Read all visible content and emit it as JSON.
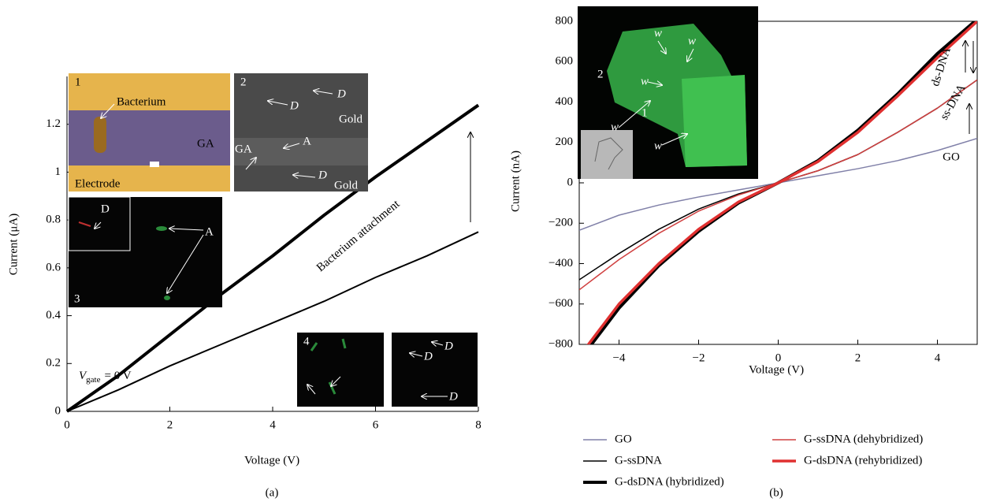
{
  "chart_data": [
    {
      "type": "line",
      "panel_label": "(a)",
      "xlabel": "Voltage (V)",
      "ylabel": "Current (μA)",
      "x": [
        0,
        1,
        2,
        3,
        4,
        5,
        6,
        7,
        8
      ],
      "xlim": [
        0,
        8
      ],
      "xticks": [
        0,
        2,
        4,
        6,
        8
      ],
      "ylim": [
        0,
        1.4
      ],
      "yticks": [
        0,
        0.2,
        0.4,
        0.6,
        0.8,
        1,
        1.2
      ],
      "series": [
        {
          "name": "Bacterium attachment",
          "color": "#000000",
          "linewidth": 4,
          "values": [
            0,
            0.15,
            0.32,
            0.49,
            0.65,
            0.82,
            0.98,
            1.13,
            1.28
          ]
        },
        {
          "name": "GA",
          "color": "#000000",
          "linewidth": 2,
          "values": [
            0,
            0.09,
            0.19,
            0.28,
            0.37,
            0.46,
            0.56,
            0.65,
            0.75
          ]
        }
      ],
      "gate_label": {
        "symbol": "V",
        "subscript": "gate",
        "rest": "= 0 V"
      },
      "insets": [
        {
          "labels": [
            "1",
            "Bacterium",
            "GA",
            "Electrode"
          ]
        },
        {
          "labels": [
            "2",
            "D",
            "D",
            "Gold",
            "GA",
            "A",
            "D",
            "Gold"
          ]
        },
        {
          "labels": [
            "D",
            "A",
            "3"
          ]
        },
        {
          "labels": [
            "4"
          ]
        },
        {
          "labels": [
            "D",
            "D",
            "D"
          ]
        }
      ]
    },
    {
      "type": "line",
      "panel_label": "(b)",
      "xlabel": "Voltage (V)",
      "ylabel": "Current (nA)",
      "x": [
        -5,
        -4,
        -3,
        -2,
        -1,
        0,
        1,
        2,
        3,
        4,
        5
      ],
      "xlim": [
        -5,
        5
      ],
      "xticks": [
        {
          "value": -4,
          "label": "−4"
        },
        {
          "value": -2,
          "label": "−2"
        },
        0,
        2,
        4
      ],
      "ylim": [
        -800,
        800
      ],
      "yticks": [
        {
          "value": -800,
          "label": "−800"
        },
        {
          "value": -600,
          "label": "−600"
        },
        {
          "value": -400,
          "label": "−400"
        },
        {
          "value": -200,
          "label": "−200"
        },
        0,
        200,
        400,
        600,
        800
      ],
      "legend": "bottom",
      "series": [
        {
          "name": "GO",
          "color": "#8080a8",
          "linewidth": 1.5,
          "values": [
            -235,
            -160,
            -110,
            -70,
            -35,
            0,
            35,
            70,
            110,
            160,
            220
          ]
        },
        {
          "name": "G-ssDNA",
          "color": "#000000",
          "linewidth": 1.5,
          "values": [
            -480,
            -350,
            -230,
            -130,
            -55,
            0,
            60,
            140,
            250,
            370,
            510
          ]
        },
        {
          "name": "G-dsDNA (hybridized)",
          "color": "#000000",
          "linewidth": 4,
          "values": [
            -880,
            -620,
            -410,
            -240,
            -100,
            0,
            110,
            260,
            440,
            640,
            810
          ]
        },
        {
          "name": "G-ssDNA (dehybridized)",
          "color": "#d04040",
          "linewidth": 1.5,
          "values": [
            -530,
            -380,
            -250,
            -140,
            -60,
            0,
            60,
            140,
            250,
            370,
            510
          ]
        },
        {
          "name": "G-dsDNA (rehybridized)",
          "color": "#e03030",
          "linewidth": 3.5,
          "values": [
            -860,
            -600,
            -400,
            -230,
            -95,
            0,
            105,
            250,
            430,
            620,
            800
          ]
        }
      ],
      "annotations": [
        "ds-DNA",
        "ss-DNA",
        "GO"
      ],
      "insets": [
        {
          "labels": [
            "w",
            "w",
            "2",
            "w",
            "w",
            "1",
            "w"
          ]
        }
      ]
    }
  ]
}
